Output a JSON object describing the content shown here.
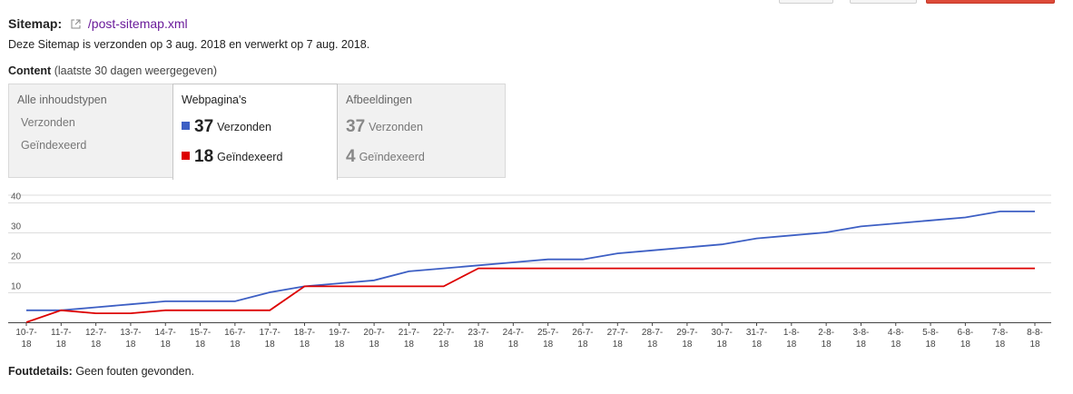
{
  "sitemap": {
    "label": "Sitemap:",
    "path": "/post-sitemap.xml",
    "status": "Deze Sitemap is verzonden op 3 aug. 2018 en verwerkt op 7 aug. 2018."
  },
  "content": {
    "label": "Content",
    "note": "(laatste 30 dagen weergegeven)"
  },
  "tabs": [
    {
      "label": "Alle inhoudstypen",
      "rows": [
        "Verzonden",
        "Geïndexeerd"
      ]
    },
    {
      "label": "Webpagina's",
      "rows": [
        {
          "value": "37",
          "text": "Verzonden"
        },
        {
          "value": "18",
          "text": "Geïndexeerd"
        }
      ]
    },
    {
      "label": "Afbeeldingen",
      "rows": [
        {
          "value": "37",
          "text": "Verzonden"
        },
        {
          "value": "4",
          "text": "Geïndexeerd"
        }
      ]
    }
  ],
  "colors": {
    "submitted": "#3d5fc4",
    "indexed": "#dd0000",
    "grid": "#dddddd",
    "axis": "#444444"
  },
  "chart_data": {
    "type": "line",
    "x": [
      "10-7-18",
      "11-7-18",
      "12-7-18",
      "13-7-18",
      "14-7-18",
      "15-7-18",
      "16-7-18",
      "17-7-18",
      "18-7-18",
      "19-7-18",
      "20-7-18",
      "21-7-18",
      "22-7-18",
      "23-7-18",
      "24-7-18",
      "25-7-18",
      "26-7-18",
      "27-7-18",
      "28-7-18",
      "29-7-18",
      "30-7-18",
      "31-7-18",
      "1-8-18",
      "2-8-18",
      "3-8-18",
      "4-8-18",
      "5-8-18",
      "6-8-18",
      "7-8-18",
      "8-8-18"
    ],
    "xticks": [
      [
        "10-7-",
        "18"
      ],
      [
        "11-7-",
        "18"
      ],
      [
        "12-7-",
        "18"
      ],
      [
        "13-7-",
        "18"
      ],
      [
        "14-7-",
        "18"
      ],
      [
        "15-7-",
        "18"
      ],
      [
        "16-7-",
        "18"
      ],
      [
        "17-7-",
        "18"
      ],
      [
        "18-7-",
        "18"
      ],
      [
        "19-7-",
        "18"
      ],
      [
        "20-7-",
        "18"
      ],
      [
        "21-7-",
        "18"
      ],
      [
        "22-7-",
        "18"
      ],
      [
        "23-7-",
        "18"
      ],
      [
        "24-7-",
        "18"
      ],
      [
        "25-7-",
        "18"
      ],
      [
        "26-7-",
        "18"
      ],
      [
        "27-7-",
        "18"
      ],
      [
        "28-7-",
        "18"
      ],
      [
        "29-7-",
        "18"
      ],
      [
        "30-7-",
        "18"
      ],
      [
        "31-7-",
        "18"
      ],
      [
        "1-8-",
        "18"
      ],
      [
        "2-8-",
        "18"
      ],
      [
        "3-8-",
        "18"
      ],
      [
        "4-8-",
        "18"
      ],
      [
        "5-8-",
        "18"
      ],
      [
        "6-8-",
        "18"
      ],
      [
        "7-8-",
        "18"
      ],
      [
        "8-8-",
        "18"
      ]
    ],
    "series": [
      {
        "values": [
          4,
          4,
          5,
          6,
          7,
          7,
          7,
          10,
          12,
          13,
          14,
          17,
          18,
          19,
          20,
          21,
          21,
          23,
          24,
          25,
          26,
          28,
          29,
          30,
          32,
          33,
          34,
          35,
          37,
          37
        ]
      },
      {
        "values": [
          0,
          4,
          3,
          3,
          4,
          4,
          4,
          4,
          12,
          12,
          12,
          12,
          12,
          18,
          18,
          18,
          18,
          18,
          18,
          18,
          18,
          18,
          18,
          18,
          18,
          18,
          18,
          18,
          18,
          18
        ]
      }
    ],
    "yticks": [
      "10",
      "20",
      "30",
      "40"
    ],
    "ylim": [
      0,
      40
    ],
    "grid": true
  },
  "footer": {
    "label": "Foutdetails:",
    "text": "Geen fouten gevonden."
  }
}
